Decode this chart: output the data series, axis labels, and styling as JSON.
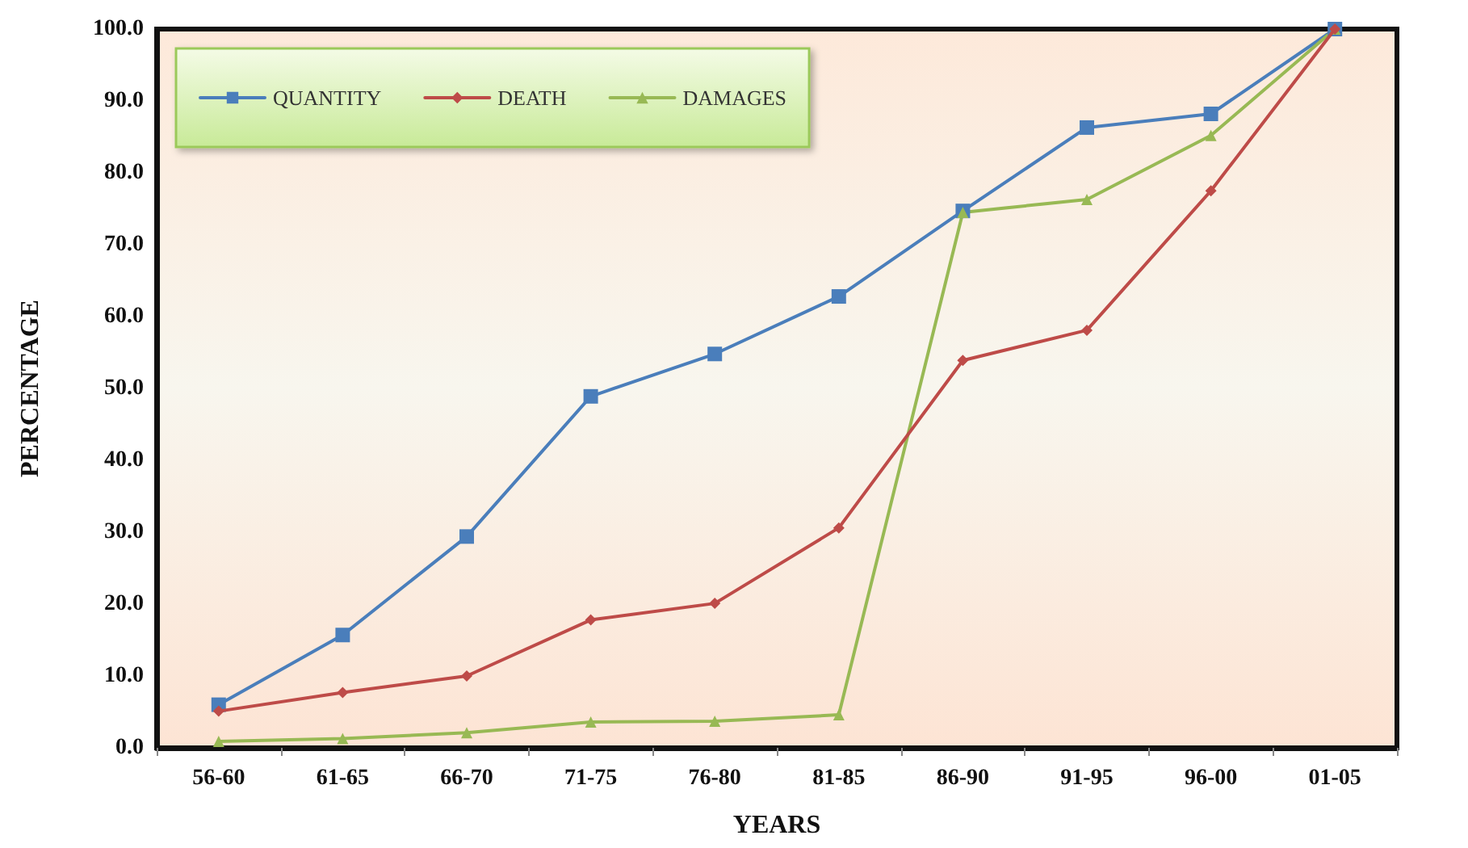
{
  "chart_data": {
    "type": "line",
    "xlabel": "YEARS",
    "ylabel": "PERCENTAGE",
    "categories": [
      "56-60",
      "61-65",
      "66-70",
      "71-75",
      "76-80",
      "81-85",
      "86-90",
      "91-95",
      "96-00",
      "01-05"
    ],
    "series": [
      {
        "name": "QUANTITY",
        "color": "#4a7ebb",
        "marker": "square",
        "values": [
          6.0,
          15.7,
          29.4,
          48.9,
          54.8,
          62.8,
          74.7,
          86.3,
          88.2,
          100.0
        ]
      },
      {
        "name": "DEATH",
        "color": "#be4b48",
        "marker": "diamond",
        "values": [
          5.1,
          7.7,
          10.0,
          17.8,
          20.1,
          30.6,
          53.9,
          58.1,
          77.5,
          100.0
        ]
      },
      {
        "name": "DAMAGES",
        "color": "#98b954",
        "marker": "triangle",
        "values": [
          0.9,
          1.3,
          2.1,
          3.6,
          3.7,
          4.6,
          74.5,
          76.3,
          85.2,
          100.0
        ]
      }
    ],
    "ylim": [
      0,
      100
    ],
    "yticks": [
      {
        "value": 0,
        "label": "0.0"
      },
      {
        "value": 10,
        "label": "10.0"
      },
      {
        "value": 20,
        "label": "20.0"
      },
      {
        "value": 30,
        "label": "30.0"
      },
      {
        "value": 40,
        "label": "40.0"
      },
      {
        "value": 50,
        "label": "50.0"
      },
      {
        "value": 60,
        "label": "60.0"
      },
      {
        "value": 70,
        "label": "70.0"
      },
      {
        "value": 80,
        "label": "80.0"
      },
      {
        "value": 90,
        "label": "90.0"
      },
      {
        "value": 100,
        "label": "100.0"
      }
    ],
    "grid": false,
    "legend": "top left",
    "line_style": "solid"
  }
}
